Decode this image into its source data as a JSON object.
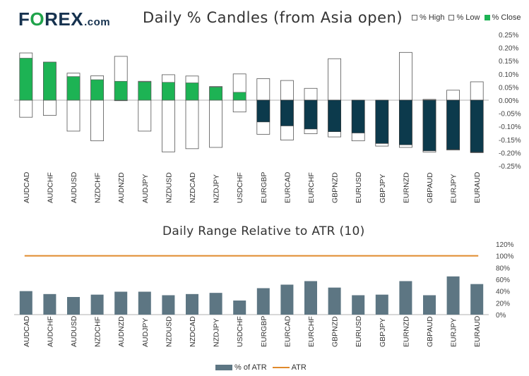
{
  "logo": {
    "brand_prefix": "F",
    "brand_o": "O",
    "brand_rest": "REX",
    "brand_suffix": ".com"
  },
  "chart_data": [
    {
      "type": "candlestick",
      "title": "Daily % Candles (from Asia open)",
      "legend": [
        "% High",
        "% Low",
        "% Close"
      ],
      "y_ticks": [
        "0.25%",
        "0.20%",
        "0.15%",
        "0.10%",
        "0.05%",
        "0.00%",
        "-0.05%",
        "-0.10%",
        "-0.15%",
        "-0.20%",
        "-0.25%"
      ],
      "ylim": [
        -0.25,
        0.25
      ],
      "categories": [
        "AUDCAD",
        "AUDCHF",
        "AUDUSD",
        "NZDCHF",
        "AUDNZD",
        "AUDJPY",
        "NZDUSD",
        "NZDCAD",
        "NZDJPY",
        "USDCHF",
        "EURGBP",
        "EURCAD",
        "EURCHF",
        "GBPNZD",
        "EURUSD",
        "GBPJPY",
        "EURNZD",
        "GBPAUD",
        "EURJPY",
        "EURAUD"
      ],
      "high": [
        0.18,
        0.145,
        0.103,
        0.093,
        0.167,
        0.072,
        0.097,
        0.092,
        0.052,
        0.1,
        0.082,
        0.075,
        0.045,
        0.158,
        0.0,
        0.0,
        0.182,
        0.003,
        0.038,
        0.07
      ],
      "low": [
        -0.065,
        -0.058,
        -0.118,
        -0.155,
        -0.002,
        -0.118,
        -0.197,
        -0.185,
        -0.18,
        -0.045,
        -0.13,
        -0.152,
        -0.128,
        -0.14,
        -0.155,
        -0.175,
        -0.18,
        -0.198,
        -0.19,
        -0.2
      ],
      "close": [
        0.16,
        0.145,
        0.09,
        0.078,
        0.072,
        0.07,
        0.068,
        0.066,
        0.05,
        0.03,
        -0.083,
        -0.098,
        -0.11,
        -0.12,
        -0.125,
        -0.165,
        -0.17,
        -0.193,
        -0.188,
        -0.198
      ]
    },
    {
      "type": "bar",
      "title": "Daily Range Relative to ATR (10)",
      "legend": [
        "% of ATR",
        "ATR"
      ],
      "y_ticks": [
        "120%",
        "100%",
        "80%",
        "60%",
        "40%",
        "20%",
        "0%"
      ],
      "ylim": [
        0,
        120
      ],
      "categories": [
        "AUDCAD",
        "AUDCHF",
        "AUDUSD",
        "NZDCHF",
        "AUDNZD",
        "AUDJPY",
        "NZDUSD",
        "NZDCAD",
        "NZDJPY",
        "USDCHF",
        "EURGBP",
        "EURCAD",
        "EURCHF",
        "GBPNZD",
        "EURUSD",
        "GBPJPY",
        "EURNZD",
        "GBPAUD",
        "EURJPY",
        "EURAUD"
      ],
      "values": [
        40,
        35,
        30,
        34,
        39,
        39,
        33,
        35,
        37,
        24,
        45,
        51,
        57,
        46,
        33,
        34,
        57,
        33,
        65,
        52
      ],
      "atr": 100
    }
  ],
  "colors": {
    "green": "#1db354",
    "navy": "#0c3a4c",
    "bar": "#5d7683",
    "atr": "#e08a2c",
    "axis": "#b0b0b0"
  }
}
